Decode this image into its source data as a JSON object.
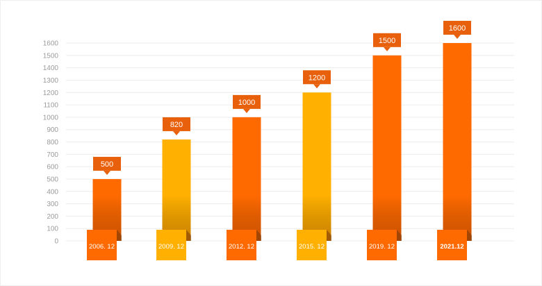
{
  "chart_data": {
    "type": "bar",
    "title": "",
    "xlabel": "",
    "ylabel": "",
    "categories": [
      "2006. 12",
      "2009. 12",
      "2012. 12",
      "2015. 12",
      "2019. 12",
      "2021.12"
    ],
    "values": [
      500,
      820,
      1000,
      1200,
      1500,
      1600
    ],
    "value_labels": [
      "500",
      "820",
      "1000",
      "1200",
      "1500",
      "1600"
    ],
    "ylim": [
      0,
      1600
    ],
    "yticks": [
      0,
      100,
      200,
      300,
      400,
      500,
      600,
      700,
      800,
      900,
      1000,
      1100,
      1200,
      1300,
      1400,
      1500,
      1600
    ],
    "grid": true,
    "legend": "none",
    "bar_colors": [
      "#ff6a00",
      "#ffb000",
      "#ff6a00",
      "#ffb000",
      "#ff6a00",
      "#ff6a00"
    ],
    "label_colors": [
      "#e8600b",
      "#e8600b",
      "#e8600b",
      "#e8600b",
      "#e8600b",
      "#e8600b"
    ]
  }
}
